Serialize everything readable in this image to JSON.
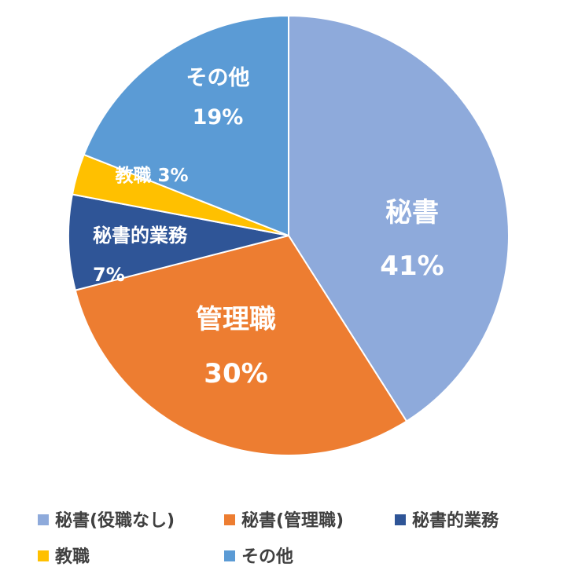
{
  "chart_data": {
    "type": "pie",
    "slices": [
      {
        "name": "秘書(役職なし)",
        "label": "秘書",
        "value": 41,
        "percent_label": "41%",
        "color": "#8eaadb"
      },
      {
        "name": "秘書(管理職)",
        "label": "管理職",
        "value": 30,
        "percent_label": "30%",
        "color": "#ed7d31"
      },
      {
        "name": "秘書的業務",
        "label": "秘書的業務",
        "value": 7,
        "percent_label": "7%",
        "color": "#2f5597"
      },
      {
        "name": "教職",
        "label": "教職",
        "value": 3,
        "percent_label": "3%",
        "color": "#ffc000"
      },
      {
        "name": "その他",
        "label": "その他",
        "value": 19,
        "percent_label": "19%",
        "color": "#5b9bd5"
      }
    ],
    "legend": {
      "position": "bottom",
      "entries": [
        "秘書(役職なし)",
        "秘書(管理職)",
        "秘書的業務",
        "教職",
        "その他"
      ]
    }
  }
}
